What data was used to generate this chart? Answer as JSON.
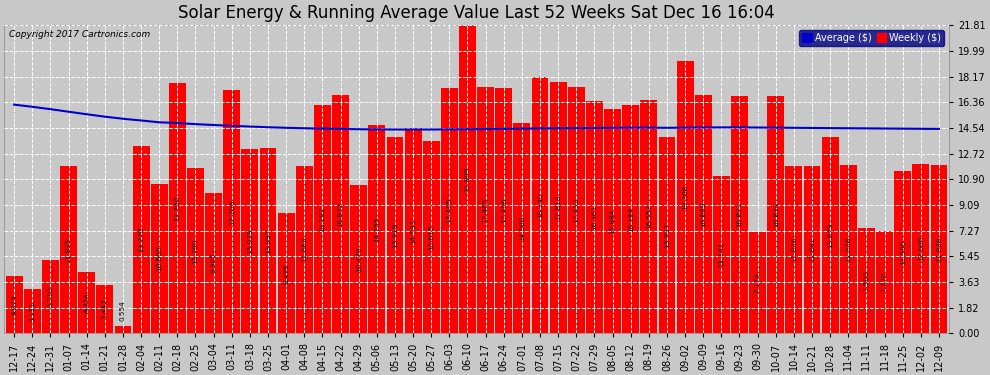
{
  "title": "Solar Energy & Running Average Value Last 52 Weeks Sat Dec 16 16:04",
  "copyright": "Copyright 2017 Cartronics.com",
  "bar_color": "#FF0000",
  "avg_line_color": "#0000CC",
  "background_color": "#C8C8C8",
  "plot_bg_color": "#C8C8C8",
  "grid_color": "#FFFFFF",
  "ytick_labels": [
    "0.00",
    "1.82",
    "3.63",
    "5.45",
    "7.27",
    "9.09",
    "10.90",
    "12.72",
    "14.54",
    "16.36",
    "18.17",
    "19.99",
    "21.81"
  ],
  "ytick_values": [
    0.0,
    1.82,
    3.63,
    5.45,
    7.27,
    9.09,
    10.9,
    12.72,
    14.54,
    16.36,
    18.17,
    19.99,
    21.81
  ],
  "categories": [
    "12-17",
    "12-24",
    "12-31",
    "01-07",
    "01-14",
    "01-21",
    "01-28",
    "02-04",
    "02-11",
    "02-18",
    "02-25",
    "03-04",
    "03-11",
    "03-18",
    "03-25",
    "04-01",
    "04-08",
    "04-15",
    "04-22",
    "04-29",
    "05-06",
    "05-13",
    "05-20",
    "05-27",
    "06-03",
    "06-10",
    "06-17",
    "06-24",
    "07-01",
    "07-08",
    "07-15",
    "07-22",
    "07-29",
    "08-05",
    "08-12",
    "08-19",
    "08-26",
    "09-02",
    "09-09",
    "09-16",
    "09-23",
    "09-30",
    "10-07",
    "10-14",
    "10-21",
    "10-28",
    "11-04",
    "11-11",
    "11-18",
    "11-25",
    "12-02",
    "12-09"
  ],
  "values": [
    4.074,
    3.111,
    5.21,
    11.835,
    4.354,
    3.445,
    0.554,
    13.276,
    10.605,
    17.76,
    11.7,
    9.965,
    17.206,
    13.029,
    13.097,
    8.496,
    11.883,
    16.202,
    16.872,
    10.479,
    14.755,
    13.918,
    14.531,
    13.615,
    17.405,
    21.809,
    17.465,
    17.406,
    14.908,
    18.14,
    17.813,
    17.452,
    16.461,
    15.884,
    16.184,
    16.552,
    13.937,
    19.308,
    16.869,
    11.141,
    16.821,
    7.174,
    16.834,
    11.856,
    11.842,
    13.879,
    11.938,
    7.5,
    7.27,
    11.5,
    12.0,
    11.938
  ],
  "avg_values": [
    16.2,
    16.05,
    15.88,
    15.7,
    15.52,
    15.35,
    15.2,
    15.08,
    14.95,
    14.9,
    14.82,
    14.76,
    14.7,
    14.65,
    14.6,
    14.56,
    14.53,
    14.5,
    14.48,
    14.46,
    14.45,
    14.44,
    14.44,
    14.44,
    14.45,
    14.46,
    14.47,
    14.48,
    14.5,
    14.52,
    14.53,
    14.54,
    14.55,
    14.56,
    14.57,
    14.57,
    14.56,
    14.57,
    14.58,
    14.59,
    14.59,
    14.58,
    14.57,
    14.56,
    14.55,
    14.54,
    14.53,
    14.52,
    14.51,
    14.5,
    14.49,
    14.48
  ],
  "ylim": [
    0.0,
    21.81
  ],
  "title_fontsize": 12,
  "tick_fontsize": 7,
  "bar_value_fontsize": 5.2
}
